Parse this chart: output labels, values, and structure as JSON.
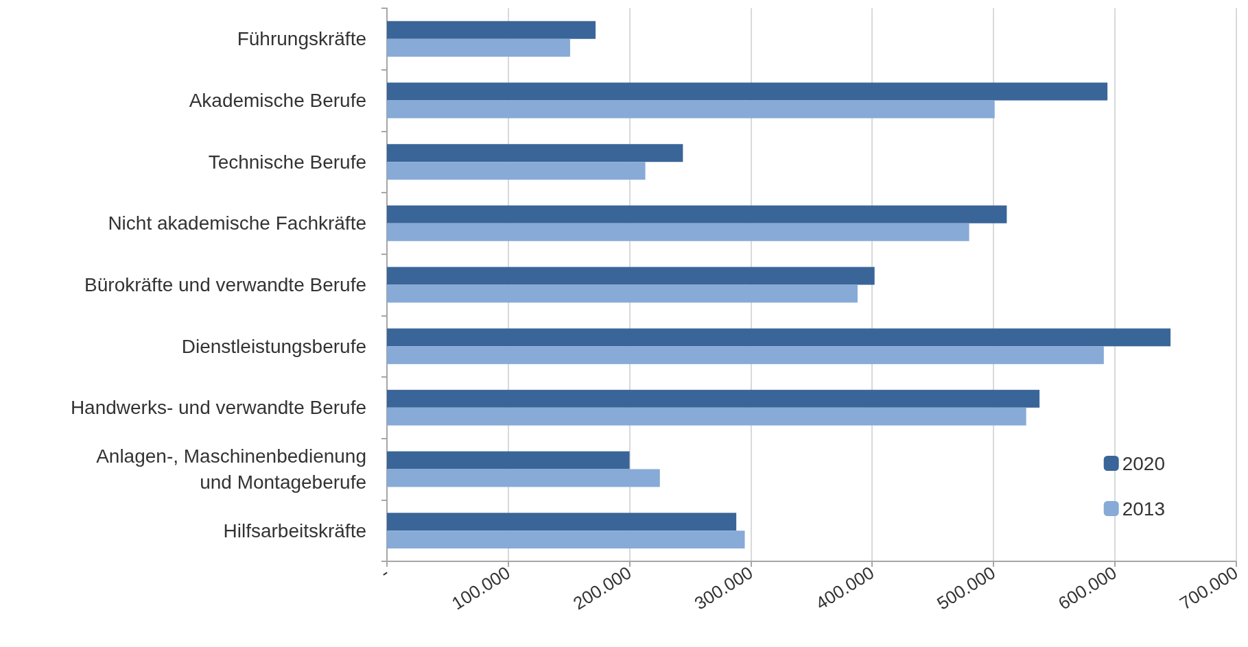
{
  "chart_data": {
    "type": "bar",
    "orientation": "horizontal",
    "categories": [
      "Führungskräfte",
      "Akademische Berufe",
      "Technische Berufe",
      "Nicht akademische Fachkräfte",
      "Bürokräfte und verwandte Berufe",
      "Dienstleistungsberufe",
      "Handwerks- und verwandte Berufe",
      "Anlagen-, Maschinenbedienung\nund Montageberufe",
      "Hilfsarbeitskräfte"
    ],
    "series": [
      {
        "name": "2020",
        "color": "#3a6598",
        "values": [
          172000,
          594000,
          244000,
          511000,
          402000,
          646000,
          538000,
          200000,
          288000
        ]
      },
      {
        "name": "2013",
        "color": "#87aad6",
        "values": [
          151000,
          501000,
          213000,
          480000,
          388000,
          591000,
          527000,
          225000,
          295000
        ]
      }
    ],
    "xlim": [
      0,
      700000
    ],
    "xticks": [
      {
        "value": 0,
        "label": "-"
      },
      {
        "value": 100000,
        "label": "100.000"
      },
      {
        "value": 200000,
        "label": "200.000"
      },
      {
        "value": 300000,
        "label": "300.000"
      },
      {
        "value": 400000,
        "label": "400.000"
      },
      {
        "value": 500000,
        "label": "500.000"
      },
      {
        "value": 600000,
        "label": "600.000"
      },
      {
        "value": 700000,
        "label": "700.000"
      }
    ],
    "grid": "x",
    "legend": "bottom right"
  }
}
